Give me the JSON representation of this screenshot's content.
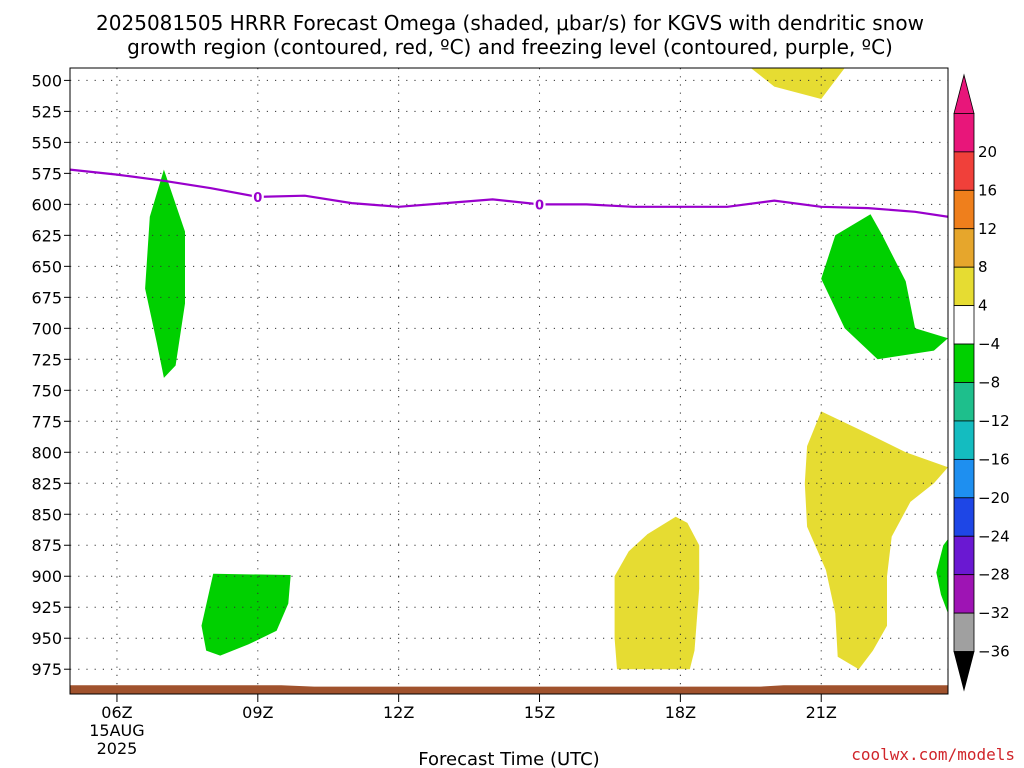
{
  "title_line1": "2025081505 HRRR Forecast Omega (shaded, μbar/s) for KGVS with dendritic snow",
  "title_line2": "growth region (contoured, red, ºC) and freezing level (contoured, purple, ºC)",
  "credit": "coolwx.com/models",
  "chart_data": {
    "type": "time-height contour",
    "xlabel": "Forecast Time (UTC)",
    "ylabel": "",
    "x_range_hours": [
      5.0,
      23.7
    ],
    "y_range_hPa": [
      490,
      995
    ],
    "y_scale": "linear, inverted",
    "y_ticks": [
      500,
      525,
      550,
      575,
      600,
      625,
      650,
      675,
      700,
      725,
      750,
      775,
      800,
      825,
      850,
      875,
      900,
      925,
      950,
      975
    ],
    "x_ticks": [
      {
        "hour": 6,
        "label": "06Z",
        "date_line1": "15AUG",
        "date_line2": "2025"
      },
      {
        "hour": 9,
        "label": "09Z"
      },
      {
        "hour": 12,
        "label": "12Z"
      },
      {
        "hour": 15,
        "label": "15Z"
      },
      {
        "hour": 18,
        "label": "18Z"
      },
      {
        "hour": 21,
        "label": "21Z"
      }
    ],
    "grid": "dotted",
    "colorbar": {
      "position": "right",
      "bands": [
        {
          "lo": 20,
          "hi": 24,
          "color": "#e8167a"
        },
        {
          "lo": 16,
          "hi": 20,
          "color": "#f0403a"
        },
        {
          "lo": 12,
          "hi": 16,
          "color": "#ef7f1c"
        },
        {
          "lo": 8,
          "hi": 12,
          "color": "#e6a62c"
        },
        {
          "lo": 4,
          "hi": 8,
          "color": "#e6dc32"
        },
        {
          "lo": -4,
          "hi": 4,
          "color": "#ffffff"
        },
        {
          "lo": -8,
          "hi": -4,
          "color": "#00d000"
        },
        {
          "lo": -12,
          "hi": -8,
          "color": "#1ebf8c"
        },
        {
          "lo": -16,
          "hi": -12,
          "color": "#14bcc0"
        },
        {
          "lo": -20,
          "hi": -16,
          "color": "#1e8ff0"
        },
        {
          "lo": -24,
          "hi": -20,
          "color": "#1e46e6"
        },
        {
          "lo": -28,
          "hi": -24,
          "color": "#6a18d2"
        },
        {
          "lo": -32,
          "hi": -28,
          "color": "#9e14b4"
        },
        {
          "lo": -36,
          "hi": -32,
          "color": "#a0a0a0"
        }
      ],
      "top_arrow_color": "#e8167a",
      "bottom_arrow_color": "#000000",
      "labels": [
        "20",
        "16",
        "12",
        "8",
        "4",
        "−4",
        "−8",
        "−12",
        "−16",
        "−20",
        "−24",
        "−28",
        "−32",
        "−36"
      ]
    },
    "shaded_regions": [
      {
        "band": "-8 to -4",
        "color": "#00d000",
        "outline": [
          [
            7.0,
            572
          ],
          [
            7.45,
            622
          ],
          [
            7.45,
            680
          ],
          [
            7.25,
            730
          ],
          [
            7.0,
            740
          ],
          [
            6.85,
            712
          ],
          [
            6.6,
            668
          ],
          [
            6.7,
            610
          ]
        ]
      },
      {
        "band": "-8 to -4",
        "color": "#00d000",
        "outline": [
          [
            8.05,
            898
          ],
          [
            9.7,
            899
          ],
          [
            9.65,
            922
          ],
          [
            9.4,
            944
          ],
          [
            8.8,
            955
          ],
          [
            8.2,
            964
          ],
          [
            7.9,
            960
          ],
          [
            7.8,
            940
          ]
        ]
      },
      {
        "band": "-8 to -4",
        "color": "#00d000",
        "outline": [
          [
            22.05,
            608
          ],
          [
            22.3,
            625
          ],
          [
            22.8,
            662
          ],
          [
            23.0,
            700
          ],
          [
            23.7,
            708
          ],
          [
            23.4,
            718
          ],
          [
            22.2,
            725
          ],
          [
            21.5,
            700
          ],
          [
            21.0,
            660
          ],
          [
            21.3,
            625
          ]
        ]
      },
      {
        "band": "-8 to -4",
        "color": "#00d000",
        "outline": [
          [
            23.6,
            875
          ],
          [
            23.7,
            870
          ],
          [
            23.7,
            930
          ],
          [
            23.55,
            915
          ],
          [
            23.45,
            897
          ]
        ]
      },
      {
        "band": "4 to 8",
        "color": "#e6dc32",
        "outline": [
          [
            19.5,
            490
          ],
          [
            20.0,
            505
          ],
          [
            21.0,
            515
          ],
          [
            21.5,
            490
          ]
        ]
      },
      {
        "band": "4 to 8",
        "color": "#e6dc32",
        "outline": [
          [
            21.0,
            767
          ],
          [
            22.0,
            785
          ],
          [
            22.8,
            800
          ],
          [
            23.7,
            812
          ],
          [
            23.4,
            825
          ],
          [
            22.9,
            840
          ],
          [
            22.5,
            868
          ],
          [
            22.4,
            900
          ],
          [
            22.4,
            940
          ],
          [
            22.1,
            960
          ],
          [
            21.8,
            975
          ],
          [
            21.35,
            965
          ],
          [
            21.3,
            930
          ],
          [
            21.1,
            895
          ],
          [
            20.7,
            860
          ],
          [
            20.65,
            825
          ],
          [
            20.7,
            795
          ]
        ]
      },
      {
        "band": "4 to 8",
        "color": "#e6dc32",
        "outline": [
          [
            17.9,
            852
          ],
          [
            18.15,
            857
          ],
          [
            18.4,
            875
          ],
          [
            18.4,
            910
          ],
          [
            18.3,
            960
          ],
          [
            18.2,
            975
          ],
          [
            16.65,
            975
          ],
          [
            16.6,
            950
          ],
          [
            16.6,
            900
          ],
          [
            16.9,
            880
          ],
          [
            17.3,
            866
          ]
        ]
      }
    ],
    "freezing_level_0C": {
      "color": "#9900cc",
      "label": "0",
      "label_hours": [
        9.0,
        15.0
      ],
      "points": [
        [
          5.0,
          572
        ],
        [
          6.0,
          576
        ],
        [
          7.0,
          581
        ],
        [
          8.0,
          587
        ],
        [
          9.0,
          594
        ],
        [
          10.0,
          593
        ],
        [
          11.0,
          599
        ],
        [
          12.0,
          602
        ],
        [
          13.0,
          599
        ],
        [
          14.0,
          596
        ],
        [
          15.0,
          600
        ],
        [
          16.0,
          600
        ],
        [
          17.0,
          602
        ],
        [
          18.0,
          602
        ],
        [
          19.0,
          602
        ],
        [
          20.0,
          597
        ],
        [
          21.0,
          602
        ],
        [
          22.0,
          603
        ],
        [
          23.0,
          606
        ],
        [
          23.7,
          610
        ]
      ]
    },
    "dendritic_growth_contours": [],
    "terrain_color": "#a0522d",
    "terrain_surface_hPa": [
      [
        5.0,
        988
      ],
      [
        8.0,
        988
      ],
      [
        9.5,
        988
      ],
      [
        10.2,
        989
      ],
      [
        12.0,
        989
      ],
      [
        15.0,
        989
      ],
      [
        18.0,
        989
      ],
      [
        19.7,
        989
      ],
      [
        20.2,
        988
      ],
      [
        21.0,
        988
      ],
      [
        23.7,
        988
      ]
    ]
  }
}
